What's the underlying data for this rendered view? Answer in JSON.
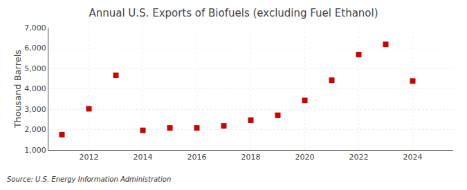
{
  "chart_data": {
    "type": "scatter",
    "title": "Annual U.S. Exports of Biofuels (excluding Fuel Ethanol)",
    "ylabel": "Thousand Barrels",
    "annotation": "Source: U.S. Energy Information Administration",
    "x": [
      2011,
      2012,
      2013,
      2014,
      2015,
      2016,
      2017,
      2018,
      2019,
      2020,
      2021,
      2022,
      2023,
      2024
    ],
    "values": [
      1750,
      3020,
      4660,
      1960,
      2080,
      2080,
      2180,
      2460,
      2700,
      3430,
      4420,
      5680,
      6180,
      4380
    ],
    "color": "#cc0000",
    "marker": "square",
    "xlim": [
      2010.5,
      2025.5
    ],
    "xticks": [
      2012,
      2014,
      2016,
      2018,
      2020,
      2022,
      2024
    ],
    "ylim": [
      1000,
      7000
    ],
    "yticks": [
      {
        "value": 1000,
        "label": "1,000"
      },
      {
        "value": 2000,
        "label": "2,000"
      },
      {
        "value": 3000,
        "label": "3,000"
      },
      {
        "value": 4000,
        "label": "4,000"
      },
      {
        "value": 5000,
        "label": "5,000"
      },
      {
        "value": 6000,
        "label": "6,000"
      },
      {
        "value": 7000,
        "label": "7,000"
      }
    ],
    "grid": true
  }
}
